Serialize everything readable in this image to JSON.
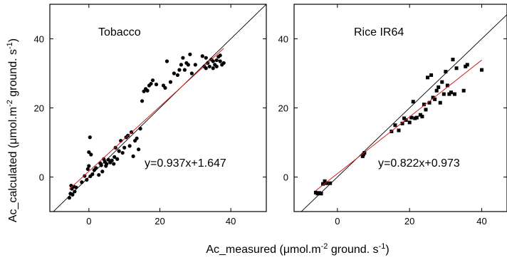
{
  "figure": {
    "ylabel": {
      "base": "Ac_calculated (",
      "mu": "μ",
      "mid": "mol.m",
      "sup1": "-2",
      "mid2": " ground. s",
      "sup2": "-1",
      "end": ")"
    },
    "xlabel": {
      "base": "Ac_measured (",
      "mu": "μ",
      "mid": "mol.m",
      "sup1": "-2",
      "mid2": " ground. s",
      "sup2": "-1",
      "end": ")"
    }
  },
  "chart_data": [
    {
      "type": "scatter",
      "title": "Tobacco",
      "equation": "y=0.937x+1.647",
      "marker": "circle",
      "fit": {
        "slope": 0.937,
        "intercept": 1.647,
        "x_range": [
          -5.5,
          38
        ],
        "color": "#cc2222"
      },
      "identity_line": true,
      "xlim": [
        -11,
        50
      ],
      "ylim": [
        -10,
        50
      ],
      "xticks": [
        0,
        20,
        40
      ],
      "yticks": [
        0,
        20,
        40
      ],
      "points": [
        [
          -5.5,
          -6
        ],
        [
          -5.2,
          -4.8
        ],
        [
          -4.8,
          -3.4
        ],
        [
          -4.6,
          -5.1
        ],
        [
          -4.2,
          -2.8
        ],
        [
          -4,
          -4.2
        ],
        [
          -3.6,
          -3.0
        ],
        [
          -5.0,
          -2.5
        ],
        [
          -2,
          -1.5
        ],
        [
          -1.2,
          0.3
        ],
        [
          -0.6,
          -0.8
        ],
        [
          -0.3,
          2.3
        ],
        [
          0,
          7.2
        ],
        [
          0.3,
          11.5
        ],
        [
          0.6,
          6.5
        ],
        [
          0,
          3.2
        ],
        [
          0.4,
          0.2
        ],
        [
          1,
          0.8
        ],
        [
          1.5,
          2.0
        ],
        [
          2,
          2.6
        ],
        [
          2.8,
          0.6
        ],
        [
          3.2,
          4.0
        ],
        [
          3.5,
          3.4
        ],
        [
          3.8,
          1.6
        ],
        [
          4.2,
          5.2
        ],
        [
          4.5,
          4.4
        ],
        [
          4.8,
          3.2
        ],
        [
          5,
          3.8
        ],
        [
          5.5,
          5.0
        ],
        [
          6.0,
          4.2
        ],
        [
          6.5,
          4.8
        ],
        [
          7.0,
          3.8
        ],
        [
          7.2,
          5.8
        ],
        [
          7.5,
          8.5
        ],
        [
          8.0,
          5.2
        ],
        [
          8.5,
          7.5
        ],
        [
          9.0,
          10.5
        ],
        [
          9.5,
          7.0
        ],
        [
          10,
          8.5
        ],
        [
          10.5,
          11.5
        ],
        [
          11,
          12.0
        ],
        [
          11.5,
          9.0
        ],
        [
          12,
          13.0
        ],
        [
          12.5,
          6.0
        ],
        [
          13,
          10.5
        ],
        [
          13.5,
          11.2
        ],
        [
          14,
          8.0
        ],
        [
          14.5,
          14.0
        ],
        [
          15,
          22.0
        ],
        [
          15.5,
          24.8
        ],
        [
          16,
          25.5
        ],
        [
          16.5,
          25.0
        ],
        [
          17,
          26.5
        ],
        [
          17.5,
          27.0
        ],
        [
          18,
          28.0
        ],
        [
          19,
          26.8
        ],
        [
          21,
          26.5
        ],
        [
          21.5,
          25.8
        ],
        [
          22,
          33.5
        ],
        [
          23,
          27.5
        ],
        [
          24,
          30.0
        ],
        [
          25,
          29.5
        ],
        [
          25.5,
          31.0
        ],
        [
          26,
          32.5
        ],
        [
          26.5,
          34.5
        ],
        [
          27,
          31.0
        ],
        [
          27.5,
          33.0
        ],
        [
          28,
          32.5
        ],
        [
          28.5,
          35.5
        ],
        [
          29,
          30.0
        ],
        [
          30,
          32.5
        ],
        [
          32,
          35.0
        ],
        [
          32.5,
          32.0
        ],
        [
          33,
          31.5
        ],
        [
          33.5,
          33.0
        ],
        [
          34,
          32.0
        ],
        [
          34.5,
          34.0
        ],
        [
          35,
          33.5
        ],
        [
          35.5,
          32.5
        ],
        [
          36,
          32.0
        ],
        [
          36.5,
          34.8
        ],
        [
          37,
          33.5
        ],
        [
          37.5,
          32.5
        ],
        [
          38,
          33.0
        ],
        [
          35,
          31.5
        ],
        [
          36,
          33.8
        ],
        [
          37,
          35.2
        ],
        [
          33,
          34.5
        ]
      ]
    },
    {
      "type": "scatter",
      "title": "Rice IR64",
      "equation": "y=0.822x+0.973",
      "marker": "square",
      "fit": {
        "slope": 0.822,
        "intercept": 0.973,
        "x_range": [
          -6,
          40
        ],
        "color": "#cc2222"
      },
      "identity_line": true,
      "xlim": [
        -12,
        47
      ],
      "ylim": [
        -10,
        50
      ],
      "xticks": [
        0,
        20,
        40
      ],
      "yticks": [
        0,
        20,
        40
      ],
      "points": [
        [
          -6,
          -4.5
        ],
        [
          -5.5,
          -4.8
        ],
        [
          -5,
          -4.6
        ],
        [
          -4.5,
          -4.8
        ],
        [
          -4,
          -2.0
        ],
        [
          -3.5,
          -1.2
        ],
        [
          -3,
          -1.8
        ],
        [
          -2,
          -1.8
        ],
        [
          7,
          6.0
        ],
        [
          7.2,
          6.5
        ],
        [
          7.5,
          7.0
        ],
        [
          15,
          13.2
        ],
        [
          16,
          15.0
        ],
        [
          17,
          13.5
        ],
        [
          18,
          15.5
        ],
        [
          18.5,
          17.0
        ],
        [
          19,
          16.5
        ],
        [
          20,
          15.8
        ],
        [
          20.5,
          17.2
        ],
        [
          21,
          21.8
        ],
        [
          21.5,
          17.0
        ],
        [
          22,
          17.2
        ],
        [
          23,
          18.0
        ],
        [
          23.5,
          17.5
        ],
        [
          24,
          21.0
        ],
        [
          24.5,
          19.5
        ],
        [
          25,
          28.8
        ],
        [
          25.5,
          21.5
        ],
        [
          26,
          29.5
        ],
        [
          26.5,
          23.0
        ],
        [
          27,
          22.5
        ],
        [
          27.5,
          25.0
        ],
        [
          28,
          26.0
        ],
        [
          28.5,
          21.5
        ],
        [
          29,
          27.5
        ],
        [
          29.5,
          24.0
        ],
        [
          30,
          30.5
        ],
        [
          30.5,
          26.5
        ],
        [
          31,
          24.0
        ],
        [
          31.5,
          24.5
        ],
        [
          32,
          34.0
        ],
        [
          32.5,
          24.0
        ],
        [
          33,
          31.5
        ],
        [
          35,
          25.0
        ],
        [
          35.5,
          32.0
        ],
        [
          36,
          32.5
        ],
        [
          40,
          31.0
        ]
      ]
    }
  ]
}
